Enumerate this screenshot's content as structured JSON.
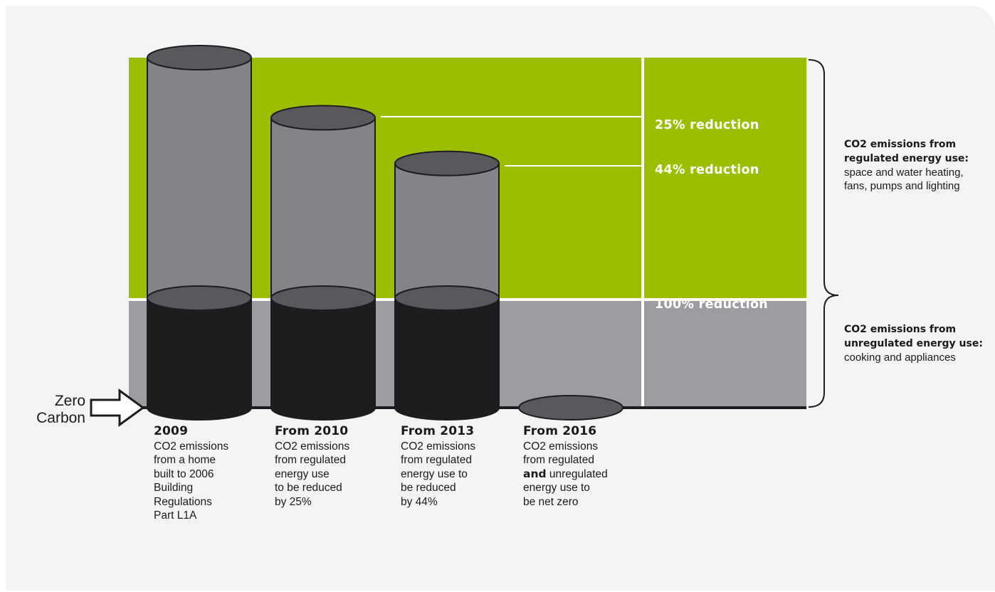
{
  "zero_label": "Zero\nCarbon",
  "reductions": {
    "r25": "25% reduction",
    "r44": "44% reduction",
    "r100": "100% reduction"
  },
  "notes": {
    "regulated": {
      "bold": "CO2 emissions from regulated energy use:",
      "text": " space and water heating, fans, pumps and lighting"
    },
    "unregulated": {
      "bold": "CO2 emissions from unregulated energy use:",
      "text": " cooking and appliances"
    }
  },
  "captions": [
    {
      "year": "2009",
      "body": "CO2 emissions\nfrom a home\nbuilt to 2006\nBuilding\nRegulations\nPart L1A"
    },
    {
      "year": "From 2010",
      "body": "CO2 emissions\nfrom regulated\nenergy use\nto be reduced\nby 25%"
    },
    {
      "year": "From 2013",
      "body": "CO2 emissions\nfrom regulated\nenergy use to\nbe reduced\nby 44%"
    },
    {
      "year": "From 2016",
      "body_pre": "CO2 emissions\nfrom regulated\n",
      "body_bold": "and",
      "body_post": " unregulated\nenergy use to\nbe net zero"
    }
  ],
  "colors": {
    "regulated_band": "#9bbf00",
    "unregulated_band": "#9d9ca1",
    "cylinder_upper": "#838388",
    "cylinder_lower": "#1d1d20",
    "cylinder_top": "#5a585d"
  },
  "chart_data": {
    "type": "bar",
    "categories": [
      "2009",
      "From 2010",
      "From 2013",
      "From 2016"
    ],
    "series": [
      {
        "values": [
          100,
          75,
          56,
          0
        ]
      },
      {
        "values": [
          100,
          100,
          100,
          0
        ]
      }
    ]
  }
}
